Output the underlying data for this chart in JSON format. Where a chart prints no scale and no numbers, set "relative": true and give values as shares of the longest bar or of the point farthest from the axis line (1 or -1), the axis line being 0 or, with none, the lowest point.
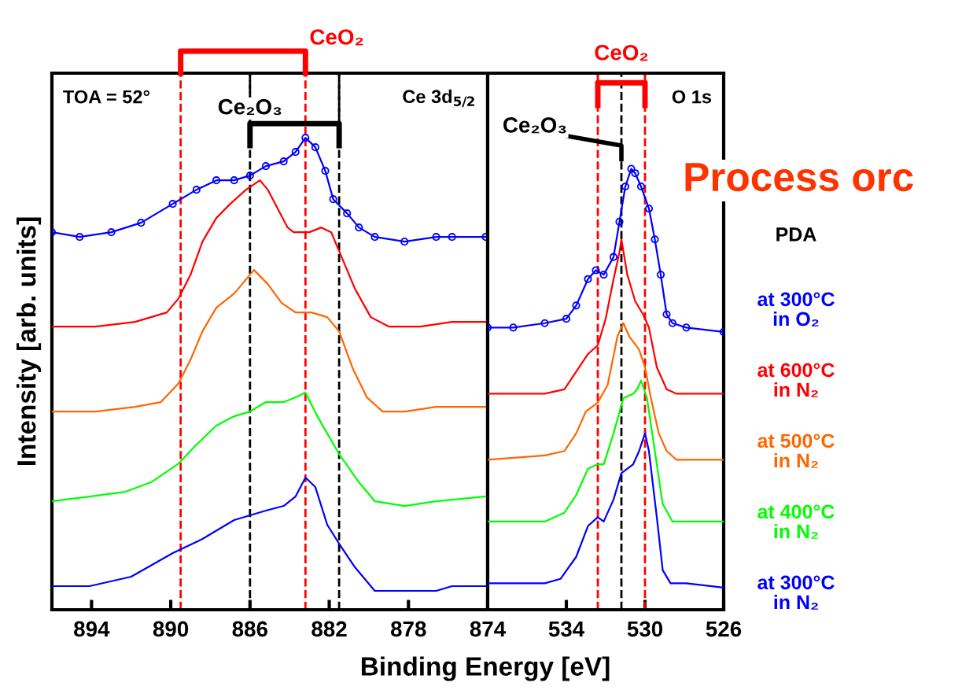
{
  "chart_data": [
    {
      "type": "line",
      "relative": true,
      "xlabel": "Binding Energy [eV]",
      "ylabel": "Intensity [arb. units]",
      "xlim": [
        896,
        874
      ],
      "xticks": [
        894,
        890,
        886,
        882,
        878,
        874
      ],
      "tick_labels": "x",
      "annotations": [
        "TOA = 52°",
        "Ce 3d$_{5/2}$"
      ],
      "ref_lines": [
        {
          "axis": "x",
          "value": 889.5,
          "label": "CeO₂",
          "color": "#ff0000",
          "line_style": "dashed"
        },
        {
          "axis": "x",
          "value": 883.2,
          "color": "#ff0000",
          "line_style": "dashed"
        },
        {
          "axis": "x",
          "value": 886.0,
          "label": "Ce₂O₃",
          "color": "#000000",
          "line_style": "dashed"
        },
        {
          "axis": "x",
          "value": 881.5,
          "color": "#000000",
          "line_style": "dashed"
        }
      ],
      "series": [
        {
          "color": "#0000ff",
          "x": [
            896.0,
            894.1,
            892.0,
            889.9,
            888.4,
            886.8,
            886.0,
            885.2,
            884.3,
            883.7,
            883.2,
            882.7,
            882.1,
            881.5,
            880.7,
            879.7,
            878.2,
            876.6,
            875.8,
            874.1
          ],
          "values": [
            0.05,
            0.05,
            0.07,
            0.12,
            0.15,
            0.19,
            0.2,
            0.21,
            0.22,
            0.24,
            0.28,
            0.26,
            0.18,
            0.14,
            0.09,
            0.04,
            0.04,
            0.04,
            0.05,
            0.05
          ]
        },
        {
          "color": "#00ff00",
          "x": [
            896.0,
            894.1,
            892.3,
            891.0,
            889.6,
            888.7,
            887.7,
            886.8,
            886.0,
            885.2,
            884.3,
            883.7,
            883.2,
            882.6,
            881.5,
            880.5,
            879.7,
            878.2,
            876.6,
            874.1
          ],
          "values": [
            0.23,
            0.24,
            0.25,
            0.27,
            0.31,
            0.35,
            0.39,
            0.41,
            0.42,
            0.44,
            0.44,
            0.45,
            0.46,
            0.41,
            0.33,
            0.27,
            0.23,
            0.22,
            0.23,
            0.24
          ]
        },
        {
          "color": "#ff6600",
          "x": [
            896.0,
            893.8,
            891.8,
            890.5,
            889.6,
            889.0,
            888.4,
            887.7,
            886.8,
            886.2,
            885.8,
            885.1,
            884.4,
            883.7,
            882.9,
            882.1,
            881.5,
            880.8,
            880.1,
            879.3,
            878.2,
            876.6,
            874.1
          ],
          "values": [
            0.42,
            0.42,
            0.43,
            0.44,
            0.48,
            0.53,
            0.59,
            0.64,
            0.67,
            0.7,
            0.72,
            0.69,
            0.65,
            0.63,
            0.63,
            0.62,
            0.59,
            0.51,
            0.45,
            0.42,
            0.42,
            0.43,
            0.43
          ]
        },
        {
          "color": "#ff0000",
          "x": [
            896.0,
            893.8,
            891.8,
            890.2,
            889.6,
            889.0,
            888.4,
            887.7,
            887.0,
            886.2,
            885.5,
            885.1,
            884.6,
            884.1,
            883.8,
            883.0,
            882.4,
            881.9,
            881.5,
            880.7,
            879.9,
            879.0,
            877.4,
            875.8,
            874.1
          ],
          "values": [
            0.6,
            0.6,
            0.61,
            0.63,
            0.66,
            0.71,
            0.78,
            0.83,
            0.86,
            0.89,
            0.91,
            0.89,
            0.85,
            0.81,
            0.8,
            0.8,
            0.81,
            0.8,
            0.76,
            0.68,
            0.62,
            0.6,
            0.6,
            0.61,
            0.61
          ]
        },
        {
          "color": "#0000ff",
          "marker": "circle",
          "x": [
            896.0,
            894.6,
            893.0,
            891.5,
            889.9,
            888.7,
            887.7,
            886.8,
            886.0,
            885.2,
            884.3,
            883.7,
            883.2,
            882.7,
            882.2,
            881.8,
            881.1,
            880.5,
            879.7,
            878.2,
            876.6,
            875.8,
            874.1
          ],
          "values": [
            0.8,
            0.79,
            0.8,
            0.82,
            0.86,
            0.89,
            0.91,
            0.91,
            0.92,
            0.94,
            0.95,
            0.97,
            1.0,
            0.98,
            0.93,
            0.87,
            0.84,
            0.81,
            0.79,
            0.78,
            0.79,
            0.79,
            0.79
          ]
        }
      ]
    },
    {
      "type": "line",
      "relative": true,
      "xlim": [
        538,
        526
      ],
      "xticks": [
        534,
        530,
        526
      ],
      "tick_labels": "x",
      "legend": "right",
      "legend_title": "PDA",
      "annotations": [
        "O 1s",
        "Process orc"
      ],
      "ref_lines": [
        {
          "axis": "x",
          "value": 532.4,
          "label": "CeO₂",
          "color": "#ff0000",
          "line_style": "dashed"
        },
        {
          "axis": "x",
          "value": 530.0,
          "color": "#ff0000",
          "line_style": "dashed"
        },
        {
          "axis": "x",
          "value": 531.2,
          "label": "Ce₂O₃",
          "color": "#000000",
          "line_style": "dashed"
        }
      ],
      "series": [
        {
          "name": "at 300°C in N₂",
          "color": "#0000ff",
          "x": [
            538.0,
            535.1,
            534.3,
            533.5,
            532.9,
            532.4,
            532.1,
            531.6,
            531.2,
            530.6,
            530.3,
            530.0,
            529.8,
            529.4,
            529.1,
            528.7,
            527.9,
            526.0
          ],
          "values": [
            0.06,
            0.06,
            0.07,
            0.12,
            0.19,
            0.21,
            0.2,
            0.25,
            0.31,
            0.33,
            0.36,
            0.4,
            0.36,
            0.21,
            0.09,
            0.06,
            0.06,
            0.05
          ]
        },
        {
          "name": "at 400°C in N₂",
          "color": "#00ff00",
          "x": [
            538.0,
            535.1,
            534.1,
            533.5,
            532.9,
            532.4,
            532.1,
            531.6,
            531.1,
            530.6,
            530.4,
            530.2,
            529.9,
            529.5,
            529.1,
            528.6,
            527.2,
            526.0
          ],
          "values": [
            0.2,
            0.2,
            0.22,
            0.26,
            0.32,
            0.33,
            0.33,
            0.4,
            0.48,
            0.49,
            0.5,
            0.52,
            0.48,
            0.36,
            0.24,
            0.2,
            0.2,
            0.2
          ]
        },
        {
          "name": "at 500°C in N₂",
          "color": "#ff6600",
          "x": [
            538.0,
            535.1,
            534.1,
            533.5,
            533.0,
            532.4,
            531.9,
            531.4,
            531.1,
            530.8,
            530.3,
            530.0,
            529.7,
            529.3,
            528.9,
            528.4,
            526.0
          ],
          "values": [
            0.34,
            0.35,
            0.36,
            0.4,
            0.45,
            0.47,
            0.51,
            0.62,
            0.65,
            0.62,
            0.59,
            0.55,
            0.48,
            0.4,
            0.36,
            0.34,
            0.34
          ]
        },
        {
          "name": "at 600°C in N₂",
          "color": "#ff0000",
          "x": [
            538.0,
            535.1,
            534.1,
            533.5,
            532.9,
            532.4,
            532.0,
            531.6,
            531.3,
            531.2,
            530.9,
            530.5,
            530.1,
            529.8,
            529.4,
            528.9,
            528.4,
            526.0
          ],
          "values": [
            0.49,
            0.49,
            0.5,
            0.54,
            0.58,
            0.6,
            0.66,
            0.75,
            0.81,
            0.84,
            0.76,
            0.7,
            0.67,
            0.64,
            0.55,
            0.5,
            0.49,
            0.49
          ]
        },
        {
          "name": "at 300°C in O₂",
          "color": "#0000ff",
          "marker": "circle",
          "x": [
            538.0,
            536.7,
            535.1,
            534.0,
            533.5,
            532.9,
            532.5,
            532.1,
            531.6,
            531.3,
            531.0,
            530.7,
            530.5,
            530.2,
            529.8,
            529.5,
            529.2,
            528.9,
            528.6,
            527.9,
            526.0
          ],
          "values": [
            0.64,
            0.64,
            0.65,
            0.66,
            0.69,
            0.75,
            0.77,
            0.76,
            0.8,
            0.88,
            0.96,
            1.0,
            0.99,
            0.96,
            0.91,
            0.84,
            0.76,
            0.67,
            0.65,
            0.64,
            0.63
          ]
        }
      ]
    }
  ]
}
